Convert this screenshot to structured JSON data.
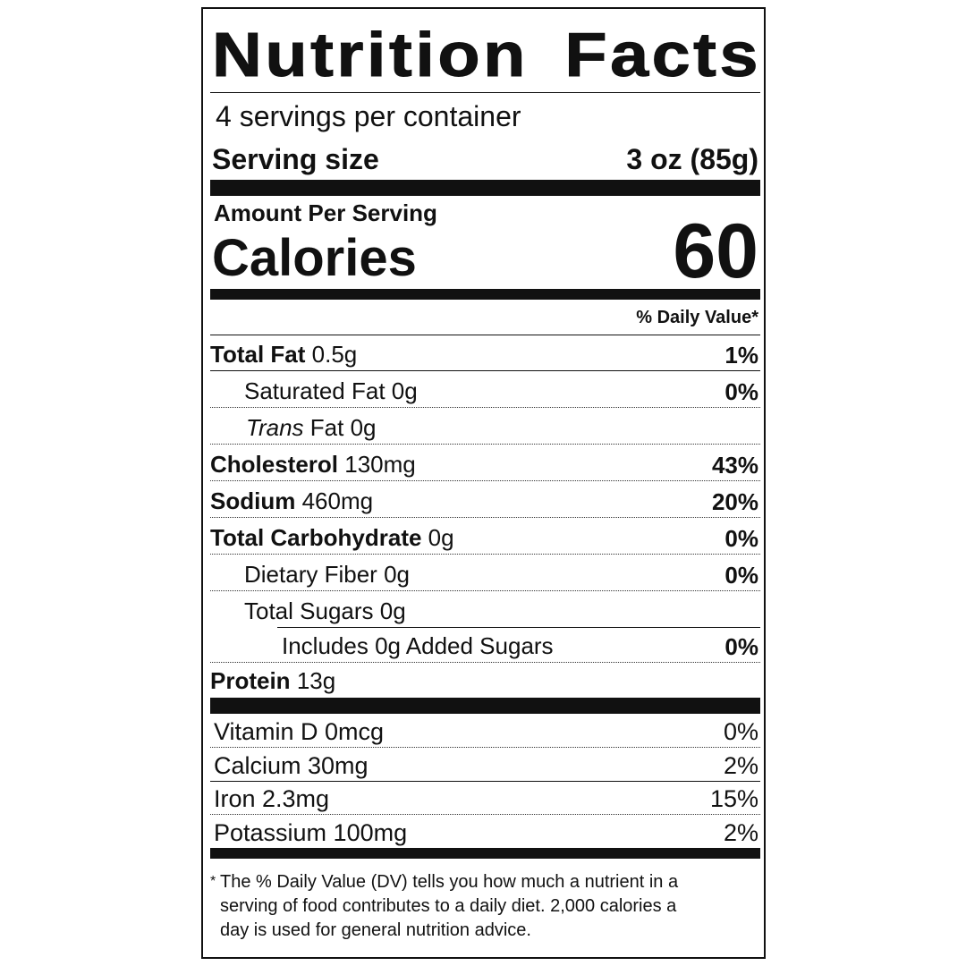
{
  "title": "Nutrition Facts",
  "servings_per_container": "4 servings per container",
  "serving_size": {
    "label": "Serving size",
    "value": "3 oz (85g)"
  },
  "amount_per_serving": "Amount Per Serving",
  "calories": {
    "label": "Calories",
    "value": "60"
  },
  "daily_value_header": "% Daily Value*",
  "nutrients": [
    {
      "name": "Total Fat",
      "amount": "0.5g",
      "dv": "1%"
    },
    {
      "name": "Saturated Fat",
      "amount": "0g",
      "dv": "0%"
    },
    {
      "name_italic": "Trans",
      "name": "Fat",
      "amount": "0g",
      "dv": ""
    },
    {
      "name": "Cholesterol",
      "amount": "130mg",
      "dv": "43%"
    },
    {
      "name": "Sodium",
      "amount": "460mg",
      "dv": "20%"
    },
    {
      "name": "Total Carbohydrate",
      "amount": "0g",
      "dv": "0%"
    },
    {
      "name": "Dietary Fiber",
      "amount": "0g",
      "dv": "0%"
    },
    {
      "name": "Total Sugars",
      "amount": "0g",
      "dv": ""
    },
    {
      "name": "Includes 0g Added Sugars",
      "amount": "",
      "dv": "0%"
    },
    {
      "name": "Protein",
      "amount": "13g",
      "dv": ""
    }
  ],
  "vitamins": [
    {
      "name": "Vitamin D 0mcg",
      "dv": "0%"
    },
    {
      "name": "Calcium 30mg",
      "dv": "2%"
    },
    {
      "name": "Iron 2.3mg",
      "dv": "15%"
    },
    {
      "name": "Potassium 100mg",
      "dv": "2%"
    }
  ],
  "footnote": {
    "marker": "*",
    "lines": [
      "The % Daily Value (DV) tells you how much a nutrient in a",
      "serving of food contributes to a daily diet. 2,000 calories a",
      "day is used for general nutrition advice."
    ]
  }
}
